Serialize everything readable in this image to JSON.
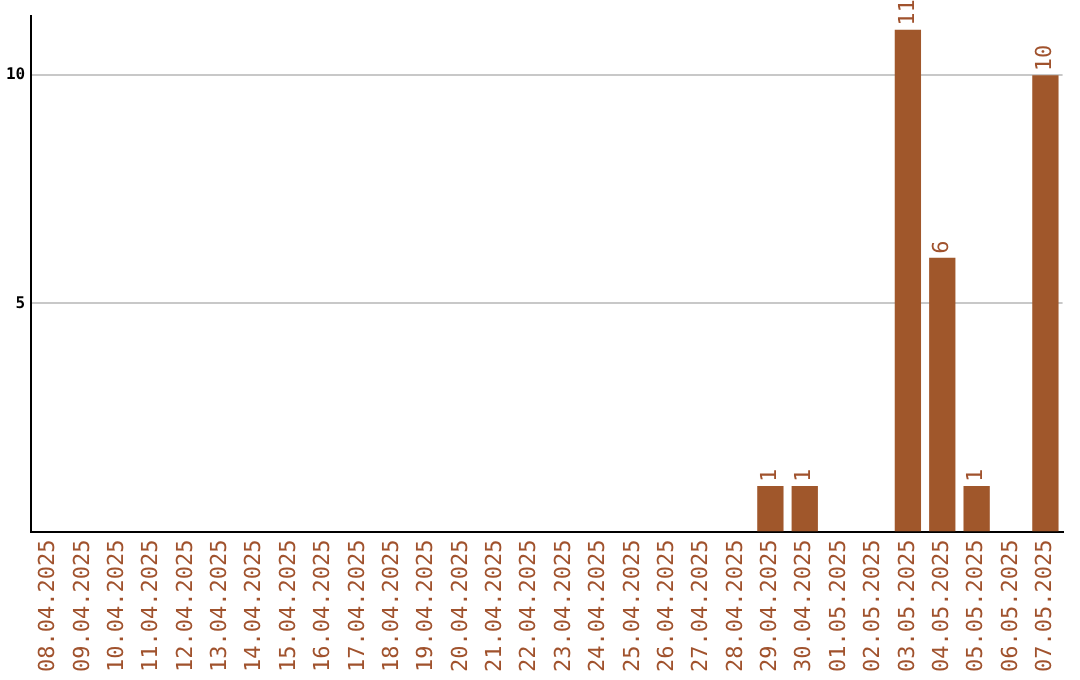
{
  "chart_data": {
    "type": "bar",
    "categories": [
      "08.04.2025",
      "09.04.2025",
      "10.04.2025",
      "11.04.2025",
      "12.04.2025",
      "13.04.2025",
      "14.04.2025",
      "15.04.2025",
      "16.04.2025",
      "17.04.2025",
      "18.04.2025",
      "19.04.2025",
      "20.04.2025",
      "21.04.2025",
      "22.04.2025",
      "23.04.2025",
      "24.04.2025",
      "25.04.2025",
      "26.04.2025",
      "27.04.2025",
      "28.04.2025",
      "29.04.2025",
      "30.04.2025",
      "01.05.2025",
      "02.05.2025",
      "03.05.2025",
      "04.05.2025",
      "05.05.2025",
      "06.05.2025",
      "07.05.2025"
    ],
    "values": [
      null,
      null,
      null,
      null,
      null,
      null,
      null,
      null,
      null,
      null,
      null,
      null,
      null,
      null,
      null,
      null,
      null,
      null,
      null,
      null,
      null,
      1,
      1,
      null,
      null,
      11,
      6,
      1,
      null,
      10
    ],
    "color": "#a0572b",
    "ylim": [
      0,
      11.3
    ],
    "yticks": [
      5,
      10
    ],
    "grid": "y",
    "data_labels": true,
    "legend": false
  }
}
